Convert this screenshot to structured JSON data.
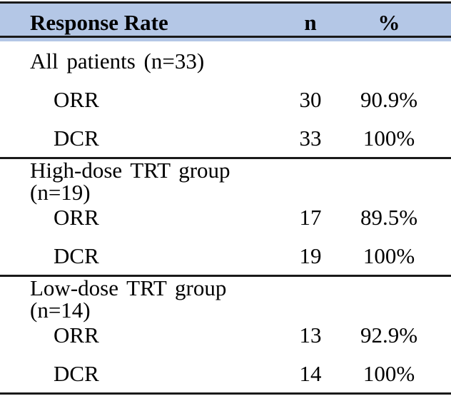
{
  "header": {
    "col_label": "Response Rate",
    "col_n": "n",
    "col_pct": "%"
  },
  "sections": [
    {
      "label": "All patients (n=33)",
      "rows": [
        {
          "label": "ORR",
          "n": "30",
          "pct": "90.9%"
        },
        {
          "label": "DCR",
          "n": "33",
          "pct": "100%"
        }
      ]
    },
    {
      "label": "High-dose TRT group (n=19)",
      "rows": [
        {
          "label": "ORR",
          "n": "17",
          "pct": "89.5%"
        },
        {
          "label": "DCR",
          "n": "19",
          "pct": "100%"
        }
      ]
    },
    {
      "label": "Low-dose TRT group (n=14)",
      "rows": [
        {
          "label": "ORR",
          "n": "13",
          "pct": "92.9%"
        },
        {
          "label": "DCR",
          "n": "14",
          "pct": "100%"
        }
      ]
    }
  ],
  "colors": {
    "header_bg": "#b4c7e6",
    "line": "#1a1a1a",
    "text": "#000000"
  }
}
